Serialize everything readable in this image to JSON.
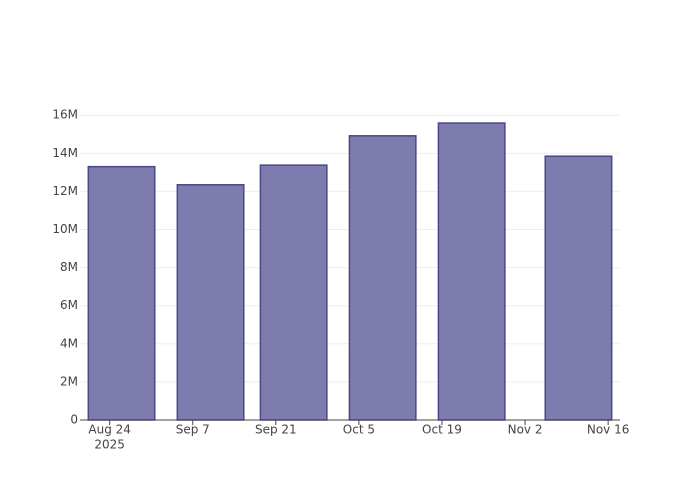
{
  "chart_data": {
    "type": "bar",
    "x": [
      "2025-08-26",
      "2025-09-10",
      "2025-09-24",
      "2025-10-09",
      "2025-10-24",
      "2025-11-11"
    ],
    "values": [
      13300000,
      12350000,
      13380000,
      14920000,
      15590000,
      13850000
    ],
    "color": "#7e7cae",
    "edge_color": "#4a4888",
    "xlim": [
      "2025-08-19",
      "2025-11-18"
    ],
    "xticks": [
      {
        "value": "2025-08-24",
        "label": "Aug 24",
        "sublabel": "2025"
      },
      {
        "value": "2025-09-07",
        "label": "Sep 7"
      },
      {
        "value": "2025-09-21",
        "label": "Sep 21"
      },
      {
        "value": "2025-10-05",
        "label": "Oct 5"
      },
      {
        "value": "2025-10-19",
        "label": "Oct 19"
      },
      {
        "value": "2025-11-02",
        "label": "Nov 2"
      },
      {
        "value": "2025-11-16",
        "label": "Nov 16"
      }
    ],
    "ylim": [
      0,
      16800000
    ],
    "yticks": [
      0,
      {
        "value": 2000000,
        "label": "2M"
      },
      {
        "value": 4000000,
        "label": "4M"
      },
      {
        "value": 6000000,
        "label": "6M"
      },
      {
        "value": 8000000,
        "label": "8M"
      },
      {
        "value": 10000000,
        "label": "10M"
      },
      {
        "value": 12000000,
        "label": "12M"
      },
      {
        "value": 14000000,
        "label": "14M"
      },
      {
        "value": 16000000,
        "label": "16M"
      }
    ],
    "grid": true
  }
}
